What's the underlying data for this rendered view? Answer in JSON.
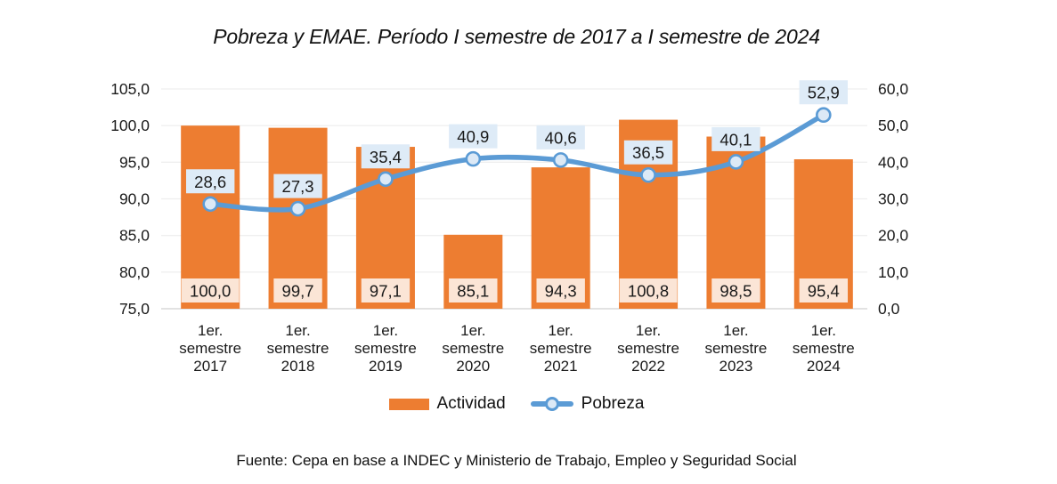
{
  "chart_data": {
    "type": "combo",
    "title": "Pobreza y EMAE. Período I semestre de 2017 a I semestre de 2024",
    "source": "Fuente: Cepa en base a INDEC y Ministerio de Trabajo, Empleo y Seguridad Social",
    "categories": [
      [
        "1er.",
        "semestre",
        "2017"
      ],
      [
        "1er.",
        "semestre",
        "2018"
      ],
      [
        "1er.",
        "semestre",
        "2019"
      ],
      [
        "1er.",
        "semestre",
        "2020"
      ],
      [
        "1er.",
        "semestre",
        "2021"
      ],
      [
        "1er.",
        "semestre",
        "2022"
      ],
      [
        "1er.",
        "semestre",
        "2023"
      ],
      [
        "1er.",
        "semestre",
        "2024"
      ]
    ],
    "series": [
      {
        "name": "Actividad",
        "type": "bar",
        "axis": "left",
        "color": "#ED7D31",
        "label_bg": "#FBE5D6",
        "values": [
          100.0,
          99.7,
          97.1,
          85.1,
          94.3,
          100.8,
          98.5,
          95.4
        ],
        "labels": [
          "100,0",
          "99,7",
          "97,1",
          "85,1",
          "94,3",
          "100,8",
          "98,5",
          "95,4"
        ]
      },
      {
        "name": "Pobreza",
        "type": "line",
        "axis": "right",
        "color": "#5B9BD5",
        "marker_fill": "#DCE9F6",
        "label_bg": "#DEEBF7",
        "values": [
          28.6,
          27.3,
          35.4,
          40.9,
          40.6,
          36.5,
          40.1,
          52.9
        ],
        "labels": [
          "28,6",
          "27,3",
          "35,4",
          "40,9",
          "40,6",
          "36,5",
          "40,1",
          "52,9"
        ]
      }
    ],
    "left_axis": {
      "min": 75,
      "max": 105,
      "step": 5,
      "ticks": [
        "105,0",
        "100,0",
        "95,0",
        "90,0",
        "85,0",
        "80,0",
        "75,0"
      ]
    },
    "right_axis": {
      "min": 0,
      "max": 60,
      "step": 10,
      "ticks": [
        "60,0",
        "50,0",
        "40,0",
        "30,0",
        "20,0",
        "10,0",
        "0,0"
      ]
    },
    "grid": true,
    "legend_position": "bottom"
  }
}
